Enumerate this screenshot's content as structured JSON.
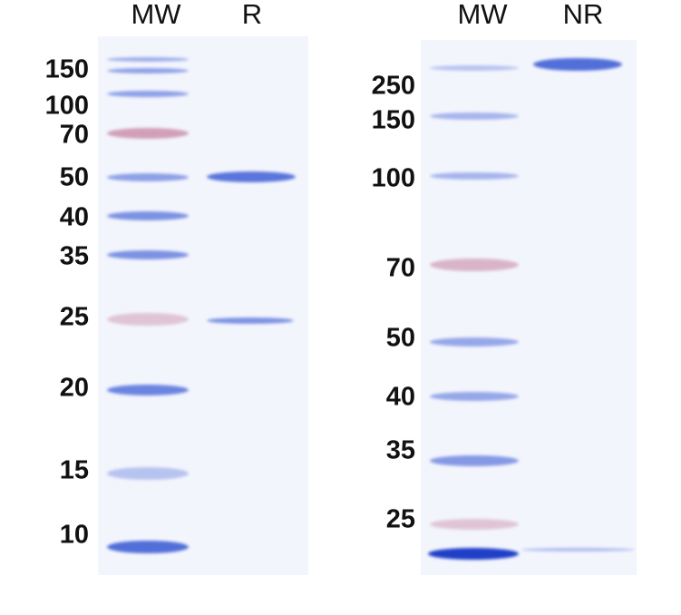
{
  "left_gel": {
    "lanes": [
      "MW",
      "R"
    ],
    "markers": [
      "150",
      "100",
      "70",
      "50",
      "40",
      "35",
      "25",
      "20",
      "15",
      "10"
    ]
  },
  "right_gel": {
    "lanes": [
      "MW",
      "NR"
    ],
    "markers": [
      "250",
      "150",
      "100",
      "70",
      "50",
      "40",
      "35",
      "25"
    ]
  },
  "colors": {
    "blue_band": "#4a68d8",
    "pink_band": "#c98aa8",
    "gel_background": "#f3f5fd"
  }
}
